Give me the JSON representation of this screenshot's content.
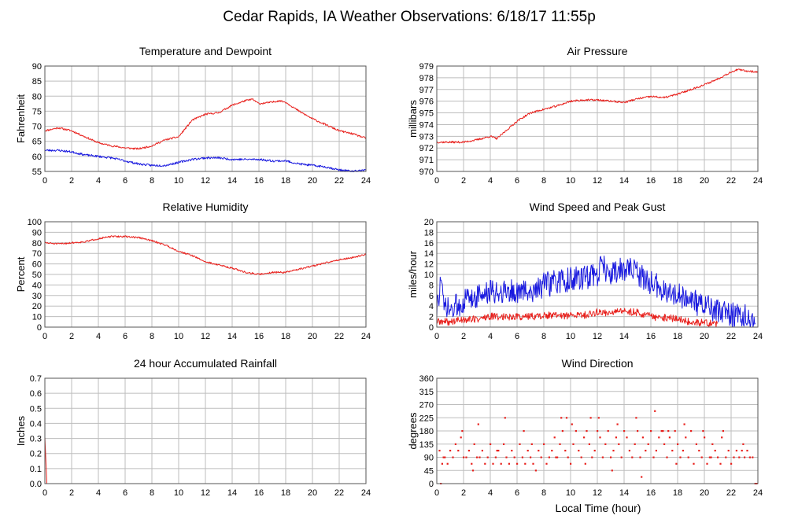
{
  "title": "Cedar Rapids, IA Weather Observations: 6/18/17 11:55p",
  "xlabel": "Local Time (hour)",
  "colors": {
    "red": "#e8201c",
    "blue": "#1a1adf",
    "grid": "#bdbdbd"
  },
  "chart_data": [
    {
      "id": "temp",
      "type": "line",
      "title": "Temperature and Dewpoint",
      "ylabel": "Fahrenheit",
      "xlim": [
        0,
        24
      ],
      "ylim": [
        55,
        90
      ],
      "yticks": [
        55,
        60,
        65,
        70,
        75,
        80,
        85,
        90
      ],
      "xticks": [
        0,
        2,
        4,
        6,
        8,
        10,
        12,
        14,
        16,
        18,
        20,
        22,
        24
      ],
      "grid": true,
      "series": [
        {
          "color": "#e8201c",
          "noise": 0.3,
          "seed": 11,
          "x": [
            0,
            1,
            2,
            3,
            4,
            5,
            6,
            7,
            7.5,
            8,
            9,
            10,
            11,
            12,
            13,
            14,
            15,
            15.5,
            16,
            17,
            17.5,
            18,
            19,
            20,
            21,
            22,
            23,
            24
          ],
          "y": [
            68.5,
            69.5,
            68.5,
            66.5,
            64.5,
            63.5,
            62.8,
            62.5,
            63,
            63.5,
            65.5,
            66.5,
            72,
            74,
            74.5,
            77,
            78.5,
            79,
            77.5,
            78,
            78.5,
            78,
            75,
            72.5,
            70.5,
            68.5,
            67.5,
            66
          ]
        },
        {
          "color": "#1a1adf",
          "noise": 0.35,
          "seed": 23,
          "x": [
            0,
            1,
            2,
            3,
            4,
            5,
            6,
            7,
            8,
            9,
            10,
            11,
            12,
            13,
            14,
            15,
            16,
            17,
            18,
            19,
            20,
            21,
            22,
            23,
            24
          ],
          "y": [
            62,
            62,
            61.5,
            60.5,
            60,
            59.5,
            58.5,
            57.5,
            57,
            57,
            58,
            59,
            59.5,
            59.5,
            59,
            59,
            59,
            58.5,
            58.5,
            57.5,
            57,
            56.5,
            55.5,
            55,
            55.5
          ]
        }
      ]
    },
    {
      "id": "pressure",
      "type": "line",
      "title": "Air Pressure",
      "ylabel": "millibars",
      "xlim": [
        0,
        24
      ],
      "ylim": [
        970,
        979
      ],
      "yticks": [
        970,
        971,
        972,
        973,
        974,
        975,
        976,
        977,
        978,
        979
      ],
      "xticks": [
        0,
        2,
        4,
        6,
        8,
        10,
        12,
        14,
        16,
        18,
        20,
        22,
        24
      ],
      "grid": true,
      "series": [
        {
          "color": "#e8201c",
          "noise": 0.08,
          "seed": 37,
          "x": [
            0,
            1,
            2,
            3,
            4,
            4.5,
            5,
            6,
            7,
            8,
            9,
            10,
            11,
            12,
            13,
            14,
            15,
            16,
            17,
            18,
            19,
            20,
            21,
            22,
            22.5,
            23,
            24
          ],
          "y": [
            972.5,
            972.5,
            972.5,
            972.7,
            973,
            972.8,
            973.3,
            974.3,
            975,
            975.3,
            975.6,
            976,
            976.1,
            976.1,
            976,
            975.9,
            976.2,
            976.4,
            976.3,
            976.6,
            977,
            977.4,
            977.9,
            978.5,
            978.7,
            978.6,
            978.5
          ]
        }
      ]
    },
    {
      "id": "humidity",
      "type": "line",
      "title": "Relative Humidity",
      "ylabel": "Percent",
      "xlim": [
        0,
        24
      ],
      "ylim": [
        0,
        100
      ],
      "yticks": [
        0,
        10,
        20,
        30,
        40,
        50,
        60,
        70,
        80,
        90,
        100
      ],
      "xticks": [
        0,
        2,
        4,
        6,
        8,
        10,
        12,
        14,
        16,
        18,
        20,
        22,
        24
      ],
      "grid": true,
      "series": [
        {
          "color": "#e8201c",
          "noise": 0.8,
          "seed": 51,
          "x": [
            0,
            1,
            2,
            3,
            4,
            5,
            6,
            7,
            8,
            9,
            10,
            11,
            12,
            13,
            14,
            15,
            16,
            17,
            18,
            19,
            20,
            21,
            22,
            23,
            24
          ],
          "y": [
            80,
            79,
            80,
            81,
            84,
            86,
            86,
            85,
            82,
            78,
            72,
            68,
            62,
            59,
            56,
            52,
            50,
            52,
            52,
            55,
            58,
            61,
            64,
            66,
            69
          ]
        }
      ]
    },
    {
      "id": "wind",
      "type": "line",
      "title": "Wind Speed and Peak Gust",
      "ylabel": "miles/hour",
      "xlim": [
        0,
        24
      ],
      "ylim": [
        0,
        20
      ],
      "yticks": [
        0,
        2,
        4,
        6,
        8,
        10,
        12,
        14,
        16,
        18,
        20
      ],
      "xticks": [
        0,
        2,
        4,
        6,
        8,
        10,
        12,
        14,
        16,
        18,
        20,
        22,
        24
      ],
      "grid": true,
      "series": [
        {
          "color": "#1a1adf",
          "noise": 2.4,
          "seed": 73,
          "min": 0,
          "x": [
            0,
            0.3,
            0.5,
            1,
            2,
            3,
            4,
            5,
            6,
            7,
            8,
            9,
            10,
            11,
            12,
            12.3,
            13,
            14,
            14.5,
            15,
            16,
            17,
            18,
            19,
            20,
            21,
            22,
            23,
            23.8
          ],
          "y": [
            3,
            9,
            4,
            3,
            5,
            6,
            6.5,
            7,
            6.5,
            7,
            8,
            8.5,
            9,
            9.5,
            10,
            12,
            10,
            11,
            11,
            10,
            8.5,
            7,
            6,
            5,
            4,
            3,
            2.5,
            2,
            0.5
          ]
        },
        {
          "color": "#e8201c",
          "noise": 0.7,
          "seed": 89,
          "min": 0,
          "x": [
            0,
            1,
            2,
            3,
            4,
            5,
            6,
            7,
            8,
            9,
            10,
            11,
            12,
            13,
            14,
            15,
            16,
            17,
            18,
            19,
            20,
            21
          ],
          "y": [
            1,
            1,
            1.5,
            1.5,
            2,
            2,
            2,
            2,
            2.2,
            2.2,
            2.2,
            2.3,
            2.8,
            2.8,
            3,
            2.8,
            2,
            1.8,
            1.5,
            1,
            0.8,
            0.5
          ]
        }
      ]
    },
    {
      "id": "rain",
      "type": "line",
      "title": "24 hour Accumulated Rainfall",
      "ylabel": "Inches",
      "xlim": [
        0,
        24
      ],
      "ylim": [
        0,
        0.7
      ],
      "yticks": [
        0.0,
        0.1,
        0.2,
        0.3,
        0.4,
        0.5,
        0.6,
        0.7
      ],
      "xticks": [
        0,
        2,
        4,
        6,
        8,
        10,
        12,
        14,
        16,
        18,
        20,
        22,
        24
      ],
      "grid": true,
      "series": [
        {
          "color": "#e8201c",
          "x": [
            0,
            0.15,
            24
          ],
          "y": [
            0.31,
            0.0,
            0.0
          ]
        }
      ]
    },
    {
      "id": "direction",
      "type": "scatter",
      "title": "Wind Direction",
      "ylabel": "degrees",
      "xlim": [
        0,
        24
      ],
      "ylim": [
        0,
        360
      ],
      "yticks": [
        0,
        45,
        90,
        135,
        180,
        225,
        270,
        315,
        360
      ],
      "xticks": [
        0,
        2,
        4,
        6,
        8,
        10,
        12,
        14,
        16,
        18,
        20,
        22,
        24
      ],
      "grid": true,
      "series": [
        {
          "color": "#e8201c",
          "x": [
            0.2,
            0.4,
            0.6,
            0.8,
            1.0,
            1.2,
            1.4,
            1.6,
            1.8,
            2.0,
            2.2,
            2.4,
            2.6,
            2.8,
            3.0,
            3.2,
            3.4,
            3.6,
            3.8,
            4.0,
            4.2,
            4.4,
            4.6,
            4.8,
            5.0,
            5.2,
            5.4,
            5.6,
            5.8,
            6.0,
            6.2,
            6.4,
            6.6,
            6.8,
            7.0,
            7.2,
            7.4,
            7.6,
            7.8,
            8.0,
            8.2,
            8.4,
            8.6,
            8.8,
            9.0,
            9.2,
            9.4,
            9.6,
            9.8,
            10.0,
            10.2,
            10.4,
            10.6,
            10.8,
            11.0,
            11.2,
            11.4,
            11.6,
            11.8,
            12.0,
            12.2,
            12.4,
            12.6,
            12.8,
            13.0,
            13.2,
            13.4,
            13.6,
            13.8,
            14.0,
            14.2,
            14.4,
            14.6,
            14.8,
            15.0,
            15.2,
            15.4,
            15.6,
            15.8,
            16.0,
            16.2,
            16.4,
            16.6,
            16.8,
            17.0,
            17.2,
            17.4,
            17.6,
            17.8,
            18.0,
            18.2,
            18.4,
            18.6,
            18.8,
            19.0,
            19.2,
            19.4,
            19.6,
            19.8,
            20.0,
            20.2,
            20.4,
            20.6,
            20.8,
            21.0,
            21.2,
            21.4,
            21.6,
            21.8,
            22.0,
            22.2,
            22.4,
            22.6,
            22.8,
            23.0,
            23.2,
            23.4,
            23.6,
            23.8,
            23.9,
            0.3,
            1.9,
            3.1,
            5.1,
            6.5,
            9.3,
            9.7,
            10.1,
            11.5,
            12.1,
            13.5,
            14.9,
            16.3,
            16.9,
            17.3,
            18.5,
            19.9,
            21.3,
            0.5,
            2.7,
            4.5,
            7.1,
            8.9,
            11.1,
            13.1,
            15.3,
            17.9,
            20.5,
            22.9
          ],
          "y": [
            113,
            68,
            90,
            68,
            113,
            90,
            135,
            113,
            158,
            90,
            90,
            113,
            68,
            135,
            90,
            90,
            113,
            68,
            90,
            135,
            68,
            90,
            113,
            68,
            135,
            90,
            68,
            113,
            90,
            68,
            135,
            90,
            68,
            113,
            90,
            68,
            45,
            113,
            90,
            135,
            68,
            90,
            113,
            158,
            90,
            135,
            180,
            113,
            90,
            68,
            135,
            180,
            113,
            90,
            158,
            180,
            135,
            90,
            113,
            180,
            158,
            90,
            135,
            180,
            90,
            113,
            158,
            135,
            90,
            180,
            158,
            113,
            90,
            135,
            180,
            90,
            158,
            113,
            135,
            180,
            90,
            113,
            158,
            180,
            135,
            90,
            158,
            113,
            180,
            135,
            90,
            113,
            158,
            90,
            180,
            68,
            135,
            113,
            90,
            158,
            68,
            90,
            135,
            113,
            90,
            68,
            180,
            90,
            113,
            68,
            90,
            113,
            90,
            113,
            90,
            113,
            90,
            90,
            0,
            0,
            0,
            180,
            203,
            225,
            180,
            225,
            225,
            203,
            225,
            225,
            203,
            225,
            248,
            180,
            180,
            203,
            180,
            158,
            90,
            45,
            113,
            135,
            90,
            68,
            45,
            23,
            68,
            90,
            135
          ]
        }
      ]
    }
  ]
}
